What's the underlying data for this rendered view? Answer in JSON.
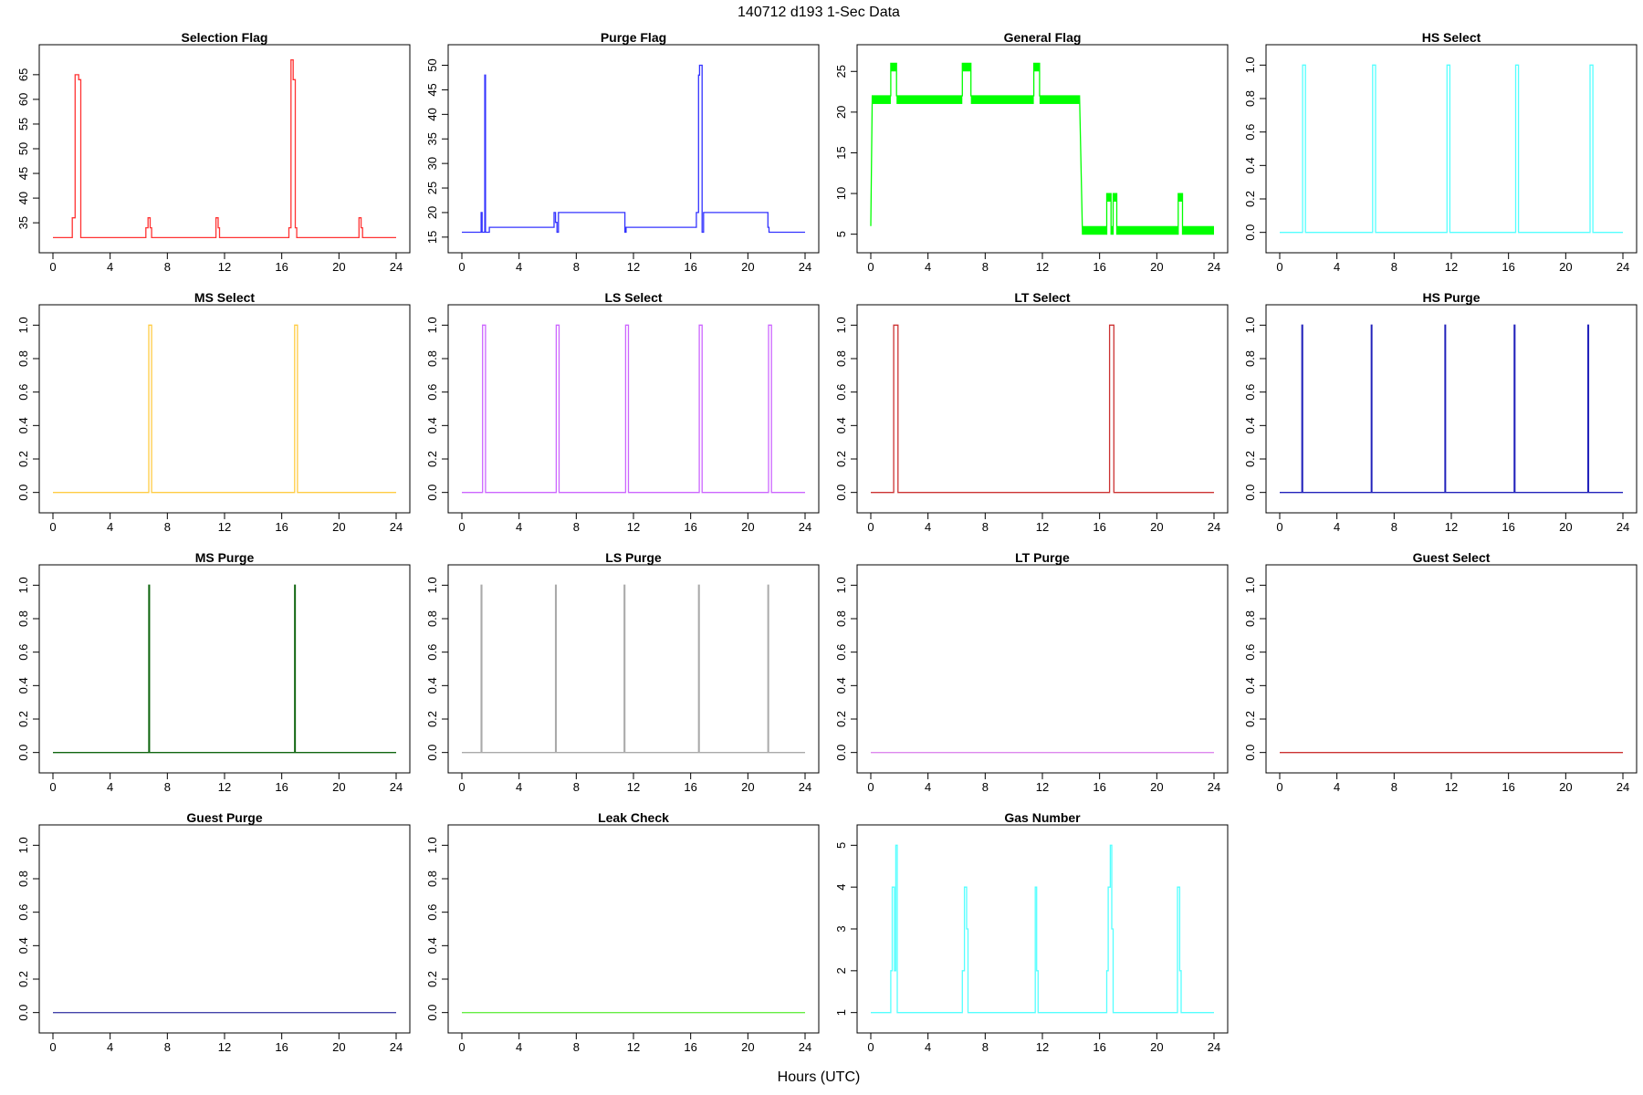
{
  "title": "140712   d193   1-Sec Data",
  "xlabel": "Hours (UTC)",
  "chart_data": [
    {
      "type": "line",
      "title": "Selection Flag",
      "color": "#ff3333",
      "xlim": [
        0,
        24
      ],
      "xticks": [
        0,
        4,
        8,
        12,
        16,
        20,
        24
      ],
      "ylim": [
        31.7,
        68.3
      ],
      "yticks": [
        35,
        40,
        45,
        50,
        55,
        60,
        65
      ],
      "x": [
        0,
        1.35,
        1.35,
        1.55,
        1.55,
        1.8,
        1.8,
        1.95,
        1.95,
        6.5,
        6.5,
        6.65,
        6.65,
        6.8,
        6.8,
        6.9,
        6.9,
        11.4,
        11.4,
        11.55,
        11.55,
        11.65,
        11.65,
        16.5,
        16.5,
        16.65,
        16.65,
        16.8,
        16.8,
        16.95,
        16.95,
        17.05,
        17.05,
        21.4,
        21.4,
        21.55,
        21.55,
        21.65,
        21.65,
        24
      ],
      "y": [
        32,
        32,
        36,
        36,
        65,
        65,
        64,
        64,
        32,
        32,
        34,
        34,
        36,
        36,
        34,
        34,
        32,
        32,
        36,
        36,
        34,
        34,
        32,
        32,
        34,
        34,
        68,
        68,
        64,
        64,
        34,
        34,
        32,
        32,
        36,
        36,
        34,
        34,
        32,
        32
      ]
    },
    {
      "type": "line",
      "title": "Purge Flag",
      "color": "#3333ff",
      "xlim": [
        0,
        24
      ],
      "xticks": [
        0,
        4,
        8,
        12,
        16,
        20,
        24
      ],
      "ylim": [
        14.6,
        51.4
      ],
      "yticks": [
        15,
        20,
        25,
        30,
        35,
        40,
        45,
        50
      ],
      "x": [
        0,
        1.35,
        1.35,
        1.42,
        1.42,
        1.6,
        1.6,
        1.65,
        1.65,
        1.92,
        1.92,
        6.45,
        6.45,
        6.55,
        6.55,
        6.65,
        6.65,
        6.75,
        6.75,
        11.4,
        11.4,
        11.48,
        11.48,
        16.4,
        16.4,
        16.55,
        16.55,
        16.62,
        16.62,
        16.8,
        16.8,
        16.9,
        16.9,
        21.4,
        21.4,
        21.48,
        21.48,
        24
      ],
      "y": [
        16,
        16,
        20,
        20,
        16,
        16,
        48,
        48,
        16,
        16,
        17,
        17,
        20,
        20,
        18,
        18,
        16,
        16,
        20,
        20,
        16,
        16,
        17,
        17,
        20,
        20,
        48,
        48,
        50,
        50,
        16,
        16,
        20,
        20,
        17,
        17,
        16,
        16
      ]
    },
    {
      "type": "line",
      "title": "General Flag",
      "color": "#00ff00",
      "xlim": [
        0,
        24
      ],
      "xticks": [
        0,
        4,
        8,
        12,
        16,
        20,
        24
      ],
      "ylim": [
        4.4,
        26.6
      ],
      "yticks": [
        5,
        10,
        15,
        20,
        25
      ],
      "x": [
        0,
        0.1,
        1.4,
        1.4,
        1.8,
        1.8,
        6.4,
        6.4,
        7,
        7,
        11.4,
        11.4,
        11.8,
        11.8,
        14.6,
        14.8,
        16.5,
        16.5,
        16.8,
        16.8,
        16.95,
        16.95,
        17.2,
        17.2,
        21.5,
        21.5,
        21.8,
        21.8,
        24
      ],
      "y": [
        6,
        22,
        22,
        26,
        26,
        22,
        22,
        26,
        26,
        22,
        22,
        26,
        26,
        22,
        22,
        5,
        5,
        10,
        10,
        5,
        5,
        10,
        10,
        5,
        5,
        10,
        10,
        5,
        5
      ],
      "bands": [
        [
          0.1,
          1.4,
          21,
          22
        ],
        [
          1.8,
          6.4,
          21,
          22
        ],
        [
          7,
          11.4,
          21,
          22
        ],
        [
          11.8,
          14.6,
          21,
          22
        ],
        [
          14.8,
          16.5,
          5,
          6
        ],
        [
          16.8,
          16.95,
          5,
          6
        ],
        [
          17.2,
          21.5,
          5,
          6
        ],
        [
          21.8,
          24,
          5,
          6
        ],
        [
          1.4,
          1.8,
          25,
          26
        ],
        [
          6.4,
          7,
          25,
          26
        ],
        [
          11.4,
          11.8,
          25,
          26
        ],
        [
          16.5,
          16.8,
          9,
          10
        ],
        [
          16.95,
          17.2,
          9,
          10
        ],
        [
          21.5,
          21.8,
          9,
          10
        ]
      ]
    },
    {
      "type": "line",
      "title": "HS Select",
      "color": "#55ffff",
      "xlim": [
        0,
        24
      ],
      "xticks": [
        0,
        4,
        8,
        12,
        16,
        20,
        24
      ],
      "ylim": [
        -0.04,
        1.04
      ],
      "yticks": [
        0.0,
        0.2,
        0.4,
        0.6,
        0.8,
        1.0
      ],
      "x": [
        0,
        1.6,
        1.6,
        1.8,
        1.8,
        6.5,
        6.5,
        6.7,
        6.7,
        11.7,
        11.7,
        11.9,
        11.9,
        16.5,
        16.5,
        16.7,
        16.7,
        21.7,
        21.7,
        21.9,
        21.9,
        24
      ],
      "y": [
        0,
        0,
        1,
        1,
        0,
        0,
        1,
        1,
        0,
        0,
        1,
        1,
        0,
        0,
        1,
        1,
        0,
        0,
        1,
        1,
        0,
        0
      ]
    },
    {
      "type": "line",
      "title": "MS Select",
      "color": "#ffcc44",
      "xlim": [
        0,
        24
      ],
      "xticks": [
        0,
        4,
        8,
        12,
        16,
        20,
        24
      ],
      "ylim": [
        -0.04,
        1.04
      ],
      "yticks": [
        0.0,
        0.2,
        0.4,
        0.6,
        0.8,
        1.0
      ],
      "x": [
        0,
        6.7,
        6.7,
        6.9,
        6.9,
        16.9,
        16.9,
        17.1,
        17.1,
        24
      ],
      "y": [
        0,
        0,
        1,
        1,
        0,
        0,
        1,
        1,
        0,
        0
      ]
    },
    {
      "type": "line",
      "title": "LS Select",
      "color": "#cc66ff",
      "xlim": [
        0,
        24
      ],
      "xticks": [
        0,
        4,
        8,
        12,
        16,
        20,
        24
      ],
      "ylim": [
        -0.04,
        1.04
      ],
      "yticks": [
        0.0,
        0.2,
        0.4,
        0.6,
        0.8,
        1.0
      ],
      "x": [
        0,
        1.45,
        1.45,
        1.65,
        1.65,
        6.6,
        6.6,
        6.8,
        6.8,
        11.45,
        11.45,
        11.65,
        11.65,
        16.6,
        16.6,
        16.8,
        16.8,
        21.45,
        21.45,
        21.65,
        21.65,
        24
      ],
      "y": [
        0,
        0,
        1,
        1,
        0,
        0,
        1,
        1,
        0,
        0,
        1,
        1,
        0,
        0,
        1,
        1,
        0,
        0,
        1,
        1,
        0,
        0
      ]
    },
    {
      "type": "line",
      "title": "LT Select",
      "color": "#cc3333",
      "xlim": [
        0,
        24
      ],
      "xticks": [
        0,
        4,
        8,
        12,
        16,
        20,
        24
      ],
      "ylim": [
        -0.04,
        1.04
      ],
      "yticks": [
        0.0,
        0.2,
        0.4,
        0.6,
        0.8,
        1.0
      ],
      "x": [
        0,
        1.6,
        1.6,
        1.9,
        1.9,
        16.7,
        16.7,
        17.0,
        17.0,
        24
      ],
      "y": [
        0,
        0,
        1,
        1,
        0,
        0,
        1,
        1,
        0,
        0
      ]
    },
    {
      "type": "line",
      "title": "HS Purge",
      "color": "#2222bb",
      "xlim": [
        0,
        24
      ],
      "xticks": [
        0,
        4,
        8,
        12,
        16,
        20,
        24
      ],
      "ylim": [
        -0.04,
        1.04
      ],
      "yticks": [
        0.0,
        0.2,
        0.4,
        0.6,
        0.8,
        1.0
      ],
      "x": [
        0,
        1.55,
        1.55,
        1.6,
        1.6,
        6.4,
        6.4,
        6.45,
        6.45,
        11.55,
        11.55,
        11.6,
        11.6,
        16.4,
        16.4,
        16.45,
        16.45,
        21.55,
        21.55,
        21.6,
        21.6,
        24
      ],
      "y": [
        0,
        0,
        1,
        1,
        0,
        0,
        1,
        1,
        0,
        0,
        1,
        1,
        0,
        0,
        1,
        1,
        0,
        0,
        1,
        1,
        0,
        0
      ]
    },
    {
      "type": "line",
      "title": "MS Purge",
      "color": "#116611",
      "xlim": [
        0,
        24
      ],
      "xticks": [
        0,
        4,
        8,
        12,
        16,
        20,
        24
      ],
      "ylim": [
        -0.04,
        1.04
      ],
      "yticks": [
        0.0,
        0.2,
        0.4,
        0.6,
        0.8,
        1.0
      ],
      "x": [
        0,
        6.7,
        6.7,
        6.75,
        6.75,
        16.9,
        16.9,
        16.95,
        16.95,
        24
      ],
      "y": [
        0,
        0,
        1,
        1,
        0,
        0,
        1,
        1,
        0,
        0
      ]
    },
    {
      "type": "line",
      "title": "LS Purge",
      "color": "#aaaaaa",
      "xlim": [
        0,
        24
      ],
      "xticks": [
        0,
        4,
        8,
        12,
        16,
        20,
        24
      ],
      "ylim": [
        -0.04,
        1.04
      ],
      "yticks": [
        0.0,
        0.2,
        0.4,
        0.6,
        0.8,
        1.0
      ],
      "x": [
        0,
        1.35,
        1.35,
        1.4,
        1.4,
        6.55,
        6.55,
        6.6,
        6.6,
        11.35,
        11.35,
        11.4,
        11.4,
        16.55,
        16.55,
        16.6,
        16.6,
        21.4,
        21.4,
        21.45,
        21.45,
        24
      ],
      "y": [
        0,
        0,
        1,
        1,
        0,
        0,
        1,
        1,
        0,
        0,
        1,
        1,
        0,
        0,
        1,
        1,
        0,
        0,
        1,
        1,
        0,
        0
      ]
    },
    {
      "type": "line",
      "title": "LT Purge",
      "color": "#dd88ee",
      "xlim": [
        0,
        24
      ],
      "xticks": [
        0,
        4,
        8,
        12,
        16,
        20,
        24
      ],
      "ylim": [
        -0.04,
        1.04
      ],
      "yticks": [
        0.0,
        0.2,
        0.4,
        0.6,
        0.8,
        1.0
      ],
      "x": [
        0,
        24
      ],
      "y": [
        0,
        0
      ]
    },
    {
      "type": "line",
      "title": "Guest Select",
      "color": "#cc3333",
      "xlim": [
        0,
        24
      ],
      "xticks": [
        0,
        4,
        8,
        12,
        16,
        20,
        24
      ],
      "ylim": [
        -0.04,
        1.04
      ],
      "yticks": [
        0.0,
        0.2,
        0.4,
        0.6,
        0.8,
        1.0
      ],
      "x": [
        0,
        24
      ],
      "y": [
        0,
        0
      ]
    },
    {
      "type": "line",
      "title": "Guest Purge",
      "color": "#4444aa",
      "xlim": [
        0,
        24
      ],
      "xticks": [
        0,
        4,
        8,
        12,
        16,
        20,
        24
      ],
      "ylim": [
        -0.04,
        1.04
      ],
      "yticks": [
        0.0,
        0.2,
        0.4,
        0.6,
        0.8,
        1.0
      ],
      "x": [
        0,
        24
      ],
      "y": [
        0,
        0
      ]
    },
    {
      "type": "line",
      "title": "Leak Check",
      "color": "#66ee44",
      "xlim": [
        0,
        24
      ],
      "xticks": [
        0,
        4,
        8,
        12,
        16,
        20,
        24
      ],
      "ylim": [
        -0.04,
        1.04
      ],
      "yticks": [
        0.0,
        0.2,
        0.4,
        0.6,
        0.8,
        1.0
      ],
      "x": [
        0,
        24
      ],
      "y": [
        0,
        0
      ]
    },
    {
      "type": "line",
      "title": "Gas Number",
      "color": "#55ffff",
      "xlim": [
        0,
        24
      ],
      "xticks": [
        0,
        4,
        8,
        12,
        16,
        20,
        24
      ],
      "ylim": [
        0.84,
        5.16
      ],
      "yticks": [
        1,
        2,
        3,
        4,
        5
      ],
      "x": [
        0,
        1.4,
        1.4,
        1.5,
        1.5,
        1.65,
        1.65,
        1.75,
        1.75,
        1.85,
        1.85,
        1.9,
        1.9,
        6.4,
        6.4,
        6.55,
        6.55,
        6.7,
        6.7,
        6.8,
        6.8,
        6.9,
        6.9,
        11.5,
        11.5,
        11.6,
        11.6,
        11.7,
        11.7,
        16.5,
        16.5,
        16.6,
        16.6,
        16.75,
        16.75,
        16.85,
        16.85,
        16.95,
        16.95,
        21.45,
        21.45,
        21.6,
        21.6,
        21.7,
        21.7,
        24
      ],
      "y": [
        1,
        1,
        2,
        2,
        4,
        4,
        2,
        2,
        5,
        5,
        1,
        1,
        1,
        1,
        2,
        2,
        4,
        4,
        3,
        3,
        1,
        1,
        1,
        1,
        4,
        4,
        2,
        2,
        1,
        1,
        2,
        2,
        4,
        4,
        5,
        5,
        3,
        3,
        1,
        1,
        4,
        4,
        2,
        2,
        1,
        1
      ]
    }
  ]
}
